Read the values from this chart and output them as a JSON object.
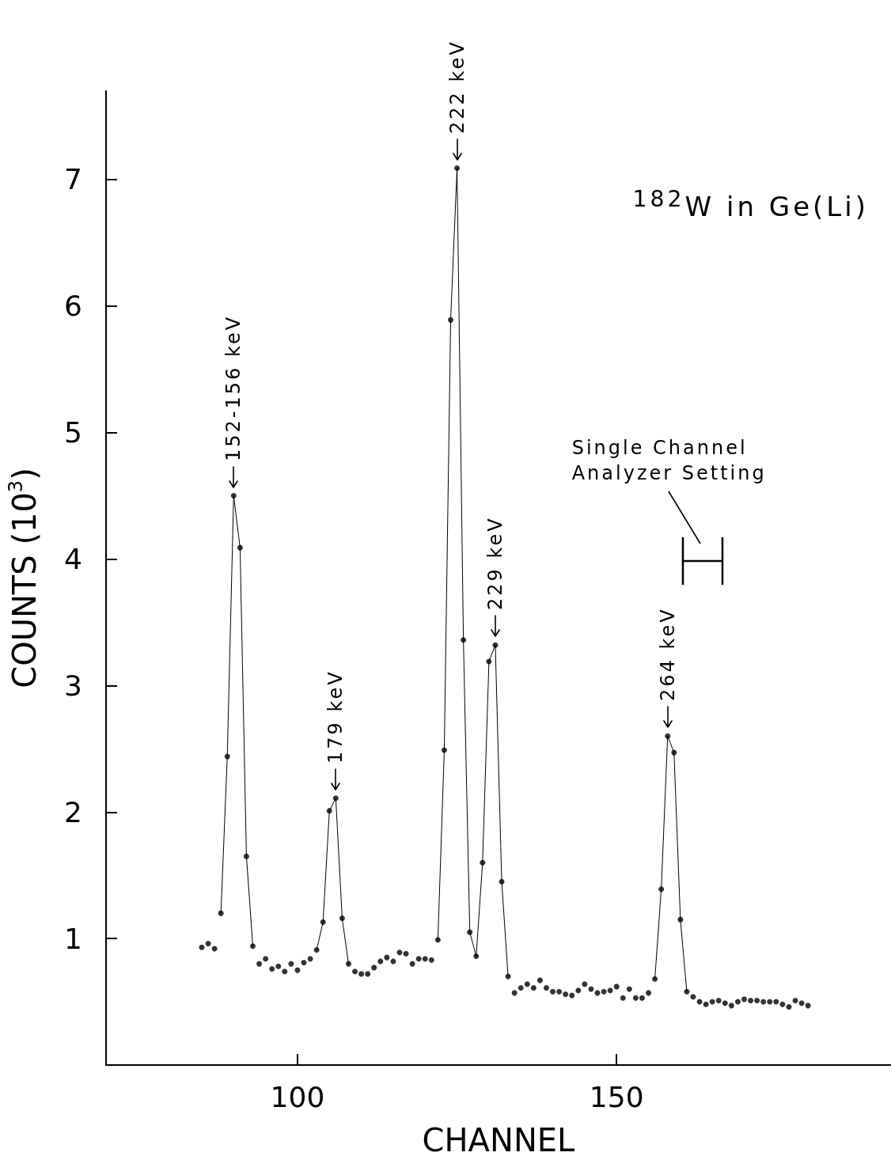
{
  "chart_data": {
    "type": "scatter",
    "xlabel": "CHANNEL",
    "ylabel": "COUNTS (10$^{3}$)",
    "x": [
      85,
      86,
      87,
      88,
      89,
      90,
      91,
      92,
      93,
      94,
      95,
      96,
      97,
      98,
      99,
      100,
      101,
      102,
      103,
      104,
      105,
      106,
      107,
      108,
      109,
      110,
      111,
      112,
      113,
      114,
      115,
      116,
      117,
      118,
      119,
      120,
      121,
      122,
      123,
      124,
      125,
      126,
      127,
      128,
      129,
      130,
      131,
      132,
      133,
      134,
      135,
      136,
      137,
      138,
      139,
      140,
      141,
      142,
      143,
      144,
      145,
      146,
      147,
      148,
      149,
      150,
      151,
      152,
      153,
      154,
      155,
      156,
      157,
      158,
      159,
      160,
      161,
      162,
      163,
      164,
      165,
      166,
      167,
      168,
      169,
      170,
      171,
      172,
      173,
      174,
      175,
      176,
      177,
      178,
      179,
      180
    ],
    "series": [
      {
        "color": "#000000",
        "marker": "circle",
        "values": [
          0.93,
          0.96,
          0.92,
          1.2,
          2.44,
          4.5,
          4.09,
          1.65,
          0.94,
          0.8,
          0.84,
          0.76,
          0.78,
          0.74,
          0.8,
          0.75,
          0.81,
          0.84,
          0.91,
          1.13,
          2.01,
          2.11,
          1.16,
          0.8,
          0.74,
          0.72,
          0.72,
          0.77,
          0.82,
          0.85,
          0.82,
          0.89,
          0.88,
          0.8,
          0.84,
          0.84,
          0.83,
          0.99,
          2.49,
          5.89,
          7.09,
          3.36,
          1.05,
          0.86,
          1.6,
          3.19,
          3.32,
          1.45,
          0.7,
          0.57,
          0.61,
          0.64,
          0.61,
          0.67,
          0.61,
          0.58,
          0.58,
          0.56,
          0.55,
          0.59,
          0.64,
          0.6,
          0.57,
          0.58,
          0.59,
          0.62,
          0.53,
          0.6,
          0.53,
          0.53,
          0.57,
          0.68,
          1.39,
          2.6,
          2.47,
          1.15,
          0.58,
          0.54,
          0.5,
          0.48,
          0.5,
          0.51,
          0.49,
          0.47,
          0.5,
          0.52,
          0.51,
          0.51,
          0.5,
          0.5,
          0.5,
          0.48,
          0.46,
          0.51,
          0.49,
          0.47
        ]
      },
      {
        "type": "line",
        "color": "#000000",
        "marker": "none",
        "line_style": "solid",
        "values": [
          null,
          null,
          null,
          1.2,
          2.44,
          4.5,
          4.09,
          1.65,
          0.94,
          null,
          null,
          null,
          null,
          null,
          null,
          null,
          null,
          null,
          0.91,
          1.13,
          2.01,
          2.11,
          1.16,
          0.8,
          null,
          null,
          null,
          null,
          null,
          null,
          null,
          null,
          null,
          null,
          null,
          null,
          null,
          0.99,
          2.49,
          5.89,
          7.09,
          3.36,
          1.05,
          0.86,
          1.6,
          3.19,
          3.32,
          1.45,
          0.7,
          null,
          null,
          null,
          null,
          null,
          null,
          null,
          null,
          null,
          null,
          null,
          null,
          null,
          null,
          null,
          null,
          null,
          null,
          null,
          null,
          null,
          null,
          0.68,
          1.39,
          2.6,
          2.47,
          1.15,
          0.58,
          null,
          null,
          null,
          null,
          null,
          null,
          null,
          null,
          null,
          null,
          null,
          null,
          null,
          null,
          null,
          null,
          null,
          null,
          null
        ]
      }
    ],
    "xlim": [
      70,
      193
    ],
    "ylim": [
      0,
      7.7
    ],
    "xticks": [
      100,
      150
    ],
    "yticks": [
      1,
      2,
      3,
      4,
      5,
      6,
      7
    ],
    "annotations": [
      {
        "text": "152-156 keV",
        "x": 90,
        "y": 4.5
      },
      {
        "text": "179 keV",
        "x": 106,
        "y": 2.11
      },
      {
        "text": "222 keV",
        "x": 125,
        "y": 7.09
      },
      {
        "text": "229 keV",
        "x": 131,
        "y": 3.32
      },
      {
        "text": "264 keV",
        "x": 158,
        "y": 2.6
      },
      "$^{182}$W in Ge(Li)",
      "Single Channel Analyzer Setting"
    ]
  }
}
